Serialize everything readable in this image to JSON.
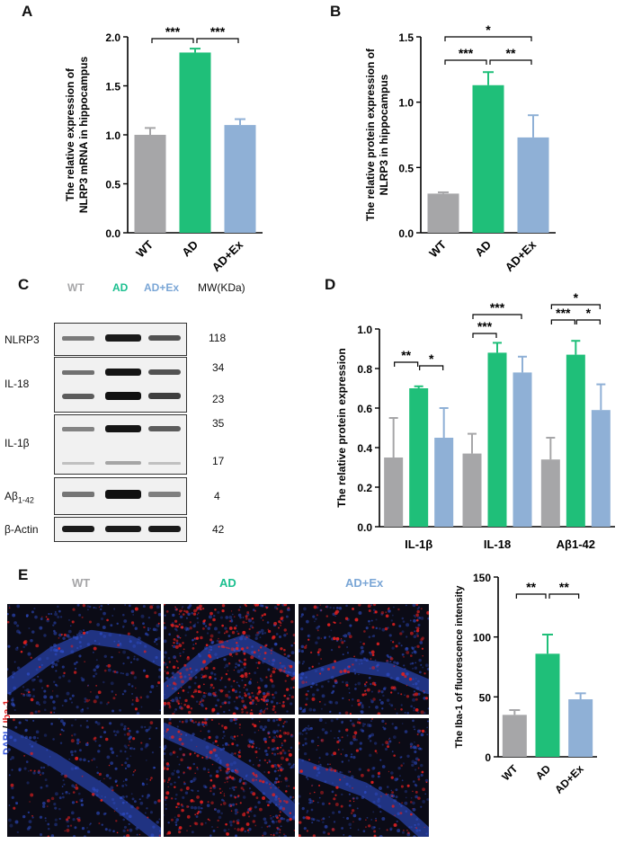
{
  "panels": {
    "A": {
      "letter": "A",
      "chart_data": {
        "type": "bar",
        "categories": [
          "WT",
          "AD",
          "AD+Ex"
        ],
        "values": [
          1.0,
          1.84,
          1.1
        ],
        "errors": [
          0.07,
          0.04,
          0.06
        ],
        "ylabel": "The relative expression of NLRP3 mRNA in hippocampus",
        "ylim": [
          0,
          2.0
        ],
        "yticks": [
          "0.0",
          "0.5",
          "1.0",
          "1.5",
          "2.0"
        ],
        "significance": [
          {
            "from": 0,
            "to": 1,
            "label": "***"
          },
          {
            "from": 1,
            "to": 2,
            "label": "***"
          }
        ]
      }
    },
    "B": {
      "letter": "B",
      "chart_data": {
        "type": "bar",
        "categories": [
          "WT",
          "AD",
          "AD+Ex"
        ],
        "values": [
          0.3,
          1.13,
          0.73
        ],
        "errors": [
          0.01,
          0.1,
          0.17
        ],
        "ylabel": "The relative protein expression of NLRP3 in hippocampus",
        "ylim": [
          0,
          1.5
        ],
        "yticks": [
          "0.0",
          "0.5",
          "1.0",
          "1.5"
        ],
        "significance": [
          {
            "from": 0,
            "to": 1,
            "label": "***"
          },
          {
            "from": 1,
            "to": 2,
            "label": "**"
          },
          {
            "from": 0,
            "to": 2,
            "label": "*"
          }
        ]
      }
    },
    "C": {
      "letter": "C",
      "lanes": [
        "WT",
        "AD",
        "AD+Ex"
      ],
      "mw_header": "MW(KDa)",
      "rows": [
        {
          "label": "NLRP3",
          "mw": [
            "118"
          ]
        },
        {
          "label": "IL-18",
          "mw": [
            "34",
            "23"
          ]
        },
        {
          "label": "IL-1β",
          "mw": [
            "35",
            "17"
          ]
        },
        {
          "label": "Aβ",
          "label_sub": "1-42",
          "mw": [
            "4"
          ]
        },
        {
          "label": "β-Actin",
          "mw": [
            "42"
          ]
        }
      ]
    },
    "D": {
      "letter": "D",
      "chart_data": {
        "type": "bar",
        "categories": [
          "IL-1β",
          "IL-18",
          "Aβ1-42"
        ],
        "series": [
          {
            "values": [
              0.35,
              0.37,
              0.34
            ],
            "errors": [
              0.2,
              0.1,
              0.11
            ]
          },
          {
            "values": [
              0.7,
              0.88,
              0.87
            ],
            "errors": [
              0.01,
              0.05,
              0.07
            ]
          },
          {
            "values": [
              0.45,
              0.78,
              0.59
            ],
            "errors": [
              0.15,
              0.08,
              0.13
            ]
          }
        ],
        "ylabel": "The relative protein expression",
        "ylim": [
          0,
          1.0
        ],
        "yticks": [
          "0.0",
          "0.2",
          "0.4",
          "0.6",
          "0.8",
          "1.0"
        ],
        "significance": [
          {
            "group": 0,
            "from": 0,
            "to": 1,
            "label": "**"
          },
          {
            "group": 0,
            "from": 1,
            "to": 2,
            "label": "*"
          },
          {
            "group": 1,
            "from": 0,
            "to": 1,
            "label": "***"
          },
          {
            "group": 1,
            "from": 0,
            "to": 2,
            "label": "***"
          },
          {
            "group": 2,
            "from": 0,
            "to": 1,
            "label": "***"
          },
          {
            "group": 2,
            "from": 1,
            "to": 2,
            "label": "*"
          },
          {
            "group": 2,
            "from": 0,
            "to": 2,
            "label": "*"
          }
        ]
      }
    },
    "E": {
      "letter": "E",
      "headers": [
        "WT",
        "AD",
        "AD+Ex"
      ],
      "side_label_blue": "DAPI",
      "side_label_sep": " / ",
      "side_label_red": "Iba-1",
      "chart_data": {
        "type": "bar",
        "categories": [
          "WT",
          "AD",
          "AD+Ex"
        ],
        "values": [
          35,
          86,
          48
        ],
        "errors": [
          4,
          16,
          5
        ],
        "ylabel": "The Iba-1 of fluorescence intensity",
        "ylim": [
          0,
          150
        ],
        "yticks": [
          "0",
          "50",
          "100",
          "150"
        ],
        "significance": [
          {
            "from": 0,
            "to": 1,
            "label": "**"
          },
          {
            "from": 1,
            "to": 2,
            "label": "**"
          }
        ]
      }
    }
  },
  "colors": {
    "wt": "#a6a6a8",
    "ad": "#1fbf79",
    "adex": "#8fb0d6",
    "blue_stain": "#3355dd",
    "red_stain": "#e02020",
    "wt_text": "#a6a6a8",
    "ad_text": "#1bbf8f",
    "adex_text": "#7aa6d6"
  }
}
